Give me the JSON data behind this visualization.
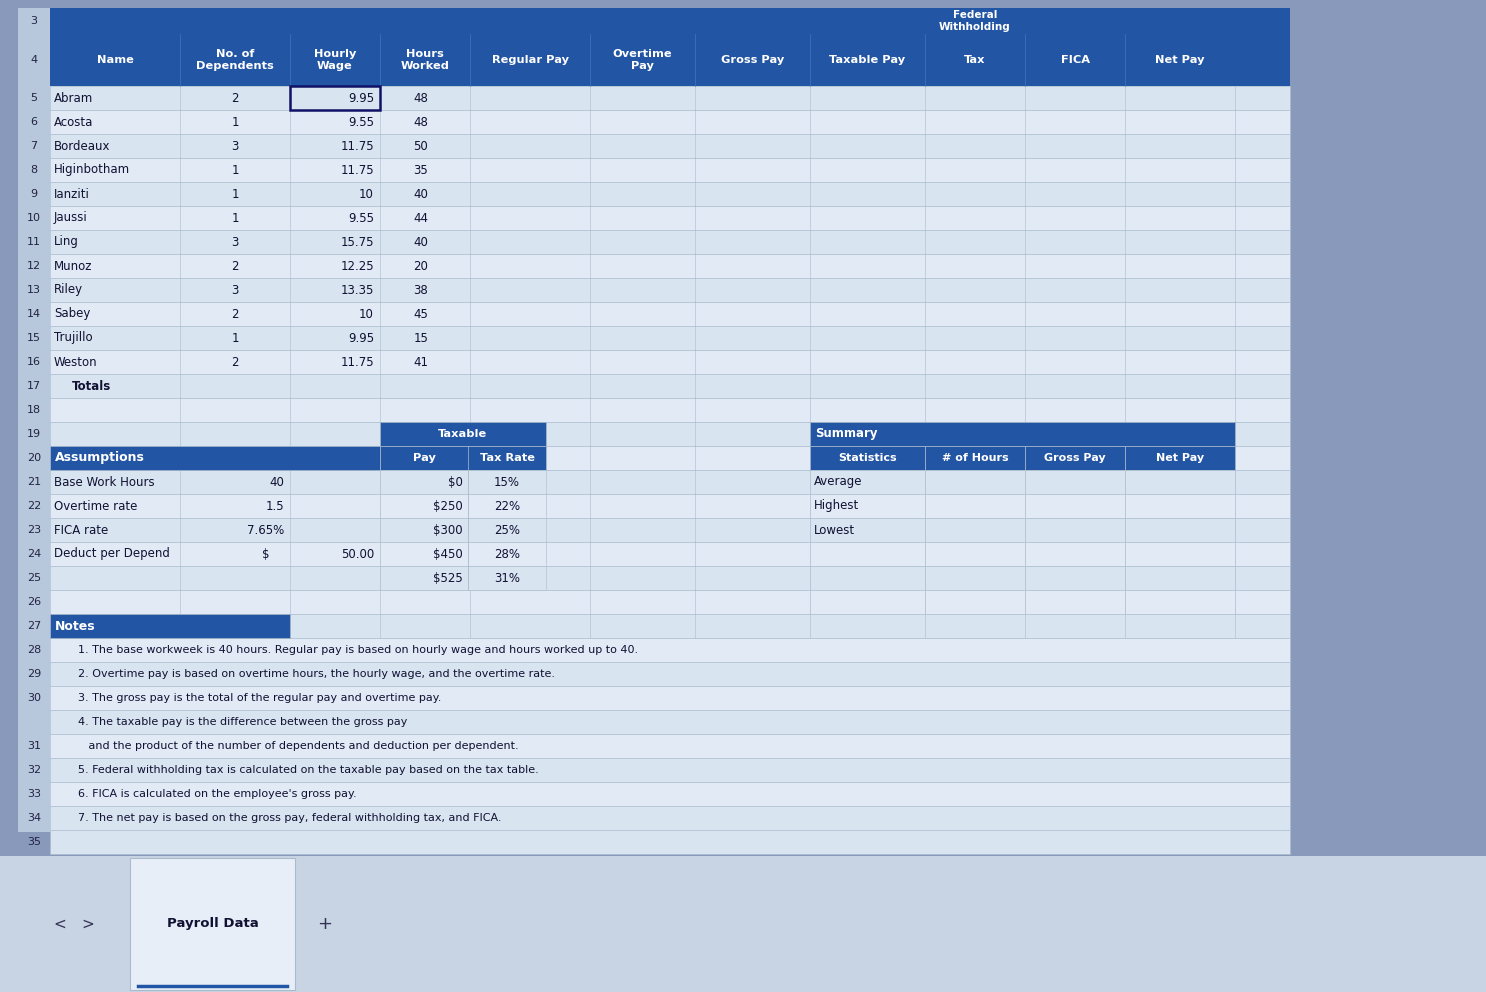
{
  "bg_outer": "#8899bb",
  "bg_sheet": "#ccd6e8",
  "header_bg": "#2255a4",
  "header_text": "#ffffff",
  "cell_light": "#d8e4f0",
  "cell_alt": "#e2eaf6",
  "grid_color": "#aabbcc",
  "text_dark": "#111133",
  "text_mid": "#222244",
  "row_num_bg": "#b8c8dc",
  "employees": [
    [
      "Abram",
      "2",
      "9.95",
      "48"
    ],
    [
      "Acosta",
      "1",
      "9.55",
      "48"
    ],
    [
      "Bordeaux",
      "3",
      "11.75",
      "50"
    ],
    [
      "Higinbotham",
      "1",
      "11.75",
      "35"
    ],
    [
      "Ianziti",
      "1",
      "10",
      "40"
    ],
    [
      "Jaussi",
      "1",
      "9.55",
      "44"
    ],
    [
      "Ling",
      "3",
      "15.75",
      "40"
    ],
    [
      "Munoz",
      "2",
      "12.25",
      "20"
    ],
    [
      "Riley",
      "3",
      "13.35",
      "38"
    ],
    [
      "Sabey",
      "2",
      "10",
      "45"
    ],
    [
      "Trujillo",
      "1",
      "9.95",
      "15"
    ],
    [
      "Weston",
      "2",
      "11.75",
      "41"
    ]
  ],
  "col_headers": [
    "Name",
    "No. of\nDependents",
    "Hourly\nWage",
    "Hours\nWorked",
    "Regular Pay",
    "Overtime\nPay",
    "Gross Pay",
    "Taxable Pay",
    "Tax",
    "FICA",
    "Net Pay"
  ],
  "tp_data": [
    [
      "$0",
      "15%"
    ],
    [
      "$250",
      "22%"
    ],
    [
      "$300",
      "25%"
    ],
    [
      "$450",
      "28%"
    ],
    [
      "$525",
      "31%"
    ]
  ],
  "summ_rows": [
    "Average",
    "Highest",
    "Lowest"
  ],
  "notes_rows": [
    [
      "28",
      "1. The base workweek is 40 hours. Regular pay is based on hourly wage and hours worked up to 40."
    ],
    [
      "29",
      "2. Overtime pay is based on overtime hours, the hourly wage, and the overtime rate."
    ],
    [
      "30",
      "3. The gross pay is the total of the regular pay and overtime pay."
    ],
    [
      "",
      "4. The taxable pay is the difference between the gross pay"
    ],
    [
      "31",
      "   and the product of the number of dependents and deduction per dependent."
    ],
    [
      "32",
      "5. Federal withholding tax is calculated on the taxable pay based on the tax table."
    ],
    [
      "33",
      "6. FICA is calculated on the employee's gross pay."
    ],
    [
      "34",
      "7. The net pay is based on the gross pay, federal withholding tax, and FICA."
    ]
  ]
}
